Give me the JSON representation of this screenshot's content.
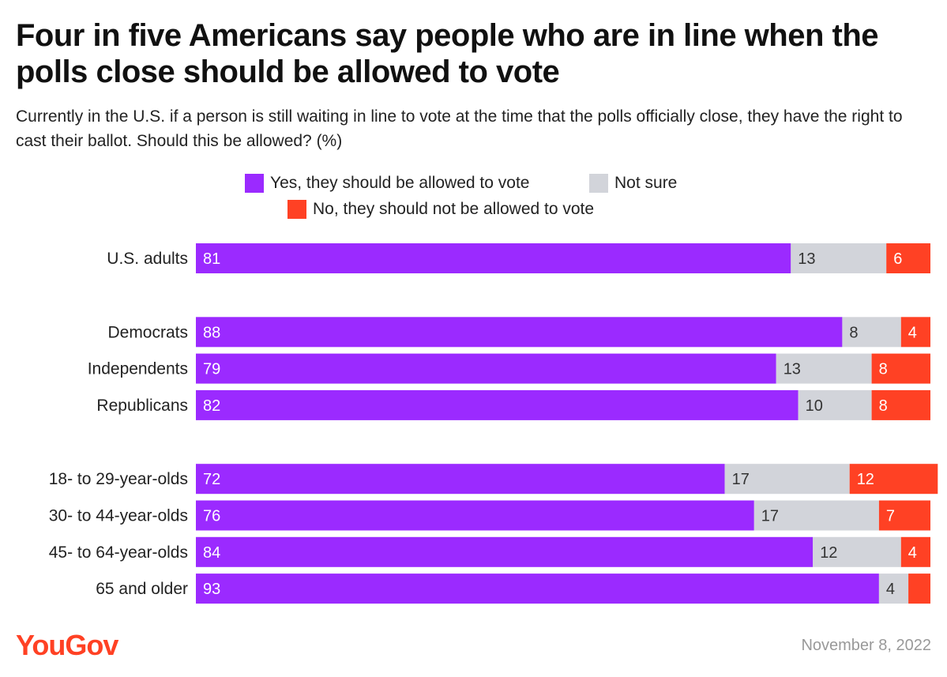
{
  "title": "Four in five Americans say people who are in line when the polls close should be allowed to vote",
  "subtitle": "Currently in the U.S. if a person is still waiting in line to vote at the time that the polls officially close, they have the right to cast their ballot. Should this be allowed? (%)",
  "colors": {
    "yes": "#9b2aff",
    "not_sure": "#d2d4da",
    "no": "#ff4124",
    "brand": "#ff4124"
  },
  "legend": {
    "yes": "Yes, they should be allowed to vote",
    "not_sure": "Not sure",
    "no": "No, they should not be allowed to vote"
  },
  "chart_data": {
    "type": "bar",
    "orientation": "horizontal",
    "stacked": true,
    "title": "Four in five Americans say people who are in line when the polls close should be allowed to vote",
    "xlabel": "",
    "ylabel": "",
    "xlim": [
      0,
      100
    ],
    "grid": false,
    "legend_position": "top-center",
    "categories": [
      "U.S. adults",
      "Democrats",
      "Independents",
      "Republicans",
      "18- to 29-year-olds",
      "30- to 44-year-olds",
      "45- to 64-year-olds",
      "65 and older"
    ],
    "groups": [
      0,
      1,
      1,
      1,
      2,
      2,
      2,
      2
    ],
    "series": [
      {
        "name": "Yes, they should be allowed to vote",
        "key": "yes",
        "values": [
          81,
          88,
          79,
          82,
          72,
          76,
          84,
          93
        ]
      },
      {
        "name": "Not sure",
        "key": "not_sure",
        "values": [
          13,
          8,
          13,
          10,
          17,
          17,
          12,
          4
        ]
      },
      {
        "name": "No, they should not be allowed to vote",
        "key": "no",
        "values": [
          6,
          4,
          8,
          8,
          12,
          7,
          4,
          3
        ]
      }
    ],
    "data_labels": [
      [
        "81",
        "13",
        "6"
      ],
      [
        "88",
        "8",
        "4"
      ],
      [
        "79",
        "13",
        "8"
      ],
      [
        "82",
        "10",
        "8"
      ],
      [
        "72",
        "17",
        "12"
      ],
      [
        "76",
        "17",
        "7"
      ],
      [
        "84",
        "12",
        "4"
      ],
      [
        "93",
        "4",
        ""
      ]
    ]
  },
  "footer": {
    "brand": "YouGov",
    "date": "November 8, 2022"
  }
}
